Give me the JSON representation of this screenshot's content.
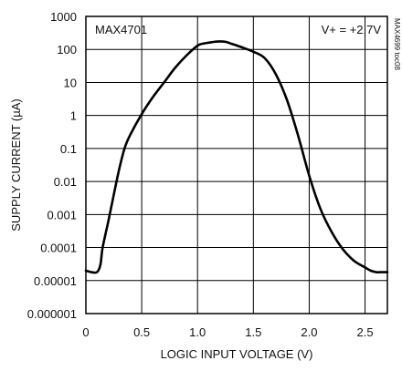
{
  "chart_data": {
    "type": "line",
    "title": "",
    "xlabel": "LOGIC INPUT VOLTAGE (V)",
    "ylabel": "SUPPLY CURRENT (µA)",
    "xlim": [
      0,
      2.7
    ],
    "ylim": [
      1e-06,
      1000
    ],
    "y_scale": "log",
    "grid": true,
    "x_ticks": [
      0,
      0.5,
      1.0,
      1.5,
      2.0,
      2.5
    ],
    "x_tick_labels": [
      "0",
      "0.5",
      "1.0",
      "1.5",
      "2.0",
      "2.5"
    ],
    "y_ticks": [
      1e-06,
      1e-05,
      0.0001,
      0.001,
      0.01,
      0.1,
      1,
      10,
      100,
      1000
    ],
    "y_tick_labels": [
      "0.000001",
      "0.00001",
      "0.0001",
      "0.001",
      "0.01",
      "0.1",
      "1",
      "10",
      "100",
      "1000"
    ],
    "annotations": {
      "top_left": "MAX4701",
      "top_right": "V+ = +2.7V",
      "side": "MAX4699 toc08"
    },
    "series": [
      {
        "color": "#000000",
        "x": [
          0,
          0.05,
          0.1,
          0.13,
          0.15,
          0.2,
          0.25,
          0.3,
          0.35,
          0.4,
          0.5,
          0.6,
          0.7,
          0.8,
          0.9,
          1.0,
          1.05,
          1.1,
          1.15,
          1.2,
          1.25,
          1.3,
          1.4,
          1.5,
          1.6,
          1.7,
          1.8,
          1.9,
          2.0,
          2.1,
          2.2,
          2.3,
          2.4,
          2.5,
          2.55,
          2.6,
          2.65,
          2.7
        ],
        "y": [
          2e-05,
          1.8e-05,
          1.8e-05,
          3e-05,
          0.0001,
          0.0006,
          0.004,
          0.025,
          0.11,
          0.27,
          1.1,
          3.6,
          10,
          28,
          65,
          130,
          150,
          160,
          170,
          175,
          170,
          150,
          115,
          85,
          55,
          18,
          3,
          0.25,
          0.015,
          0.0015,
          0.0003,
          9e-05,
          4e-05,
          2.5e-05,
          2e-05,
          1.8e-05,
          1.8e-05,
          1.8e-05
        ]
      }
    ]
  }
}
